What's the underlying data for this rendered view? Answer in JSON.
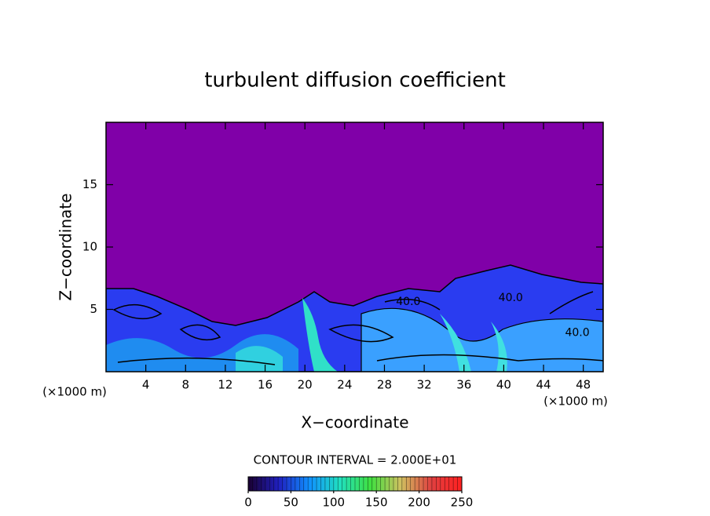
{
  "chart_data": {
    "type": "contour",
    "title": "turbulent diffusion coefficient",
    "x_label": "X−coordinate",
    "y_label": "Z−coordinate",
    "x_unit": "(×1000 m)",
    "y_unit": "(×1000 m)",
    "xlim": [
      0,
      50
    ],
    "ylim": [
      0,
      20
    ],
    "xticks": [
      4,
      8,
      12,
      16,
      20,
      24,
      28,
      32,
      36,
      40,
      44,
      48
    ],
    "yticks": [
      5,
      10,
      15
    ],
    "contour_interval_text": "CONTOUR INTERVAL = 2.000E+01",
    "annotations": [
      {
        "text": "40.0",
        "x": 30.4,
        "y": 5.6
      },
      {
        "text": "40.0",
        "x": 40.7,
        "y": 5.9
      },
      {
        "text": "40.0",
        "x": 47.4,
        "y": 3.1
      }
    ],
    "colorbar": {
      "lim": [
        0,
        250
      ],
      "ticks": [
        0,
        50,
        100,
        150,
        200,
        250
      ],
      "colors": [
        "#1a0030",
        "#2020c0",
        "#1090ff",
        "#20e0c0",
        "#40e040",
        "#d0c060",
        "#e04040",
        "#ff2020"
      ]
    }
  }
}
